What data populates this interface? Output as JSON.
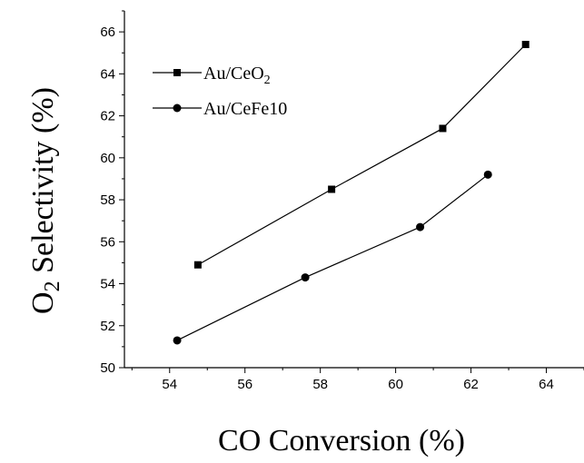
{
  "chart_data": {
    "type": "line",
    "title": "",
    "xlabel": "CO Conversion (%)",
    "ylabel_main": "O",
    "ylabel_sub": "2",
    "ylabel_rest": " Selectivity (%)",
    "xlim": [
      52.8,
      65
    ],
    "ylim": [
      50,
      67
    ],
    "xticks": [
      54,
      56,
      58,
      60,
      62,
      64
    ],
    "yticks": [
      50,
      52,
      54,
      56,
      58,
      60,
      62,
      64,
      66
    ],
    "grid": false,
    "legend_position": "top-left",
    "series": [
      {
        "name": "Au/CeO2",
        "name_main": "Au/CeO",
        "name_sub": "2",
        "marker": "square",
        "color": "#000000",
        "x": [
          54.75,
          58.3,
          61.25,
          63.45
        ],
        "y": [
          54.9,
          58.5,
          61.4,
          65.4
        ]
      },
      {
        "name": "Au/CeFe10",
        "name_main": "Au/CeFe10",
        "name_sub": "",
        "marker": "circle",
        "color": "#000000",
        "x": [
          54.2,
          57.6,
          60.65,
          62.45
        ],
        "y": [
          51.3,
          54.3,
          56.7,
          59.2
        ]
      }
    ]
  }
}
